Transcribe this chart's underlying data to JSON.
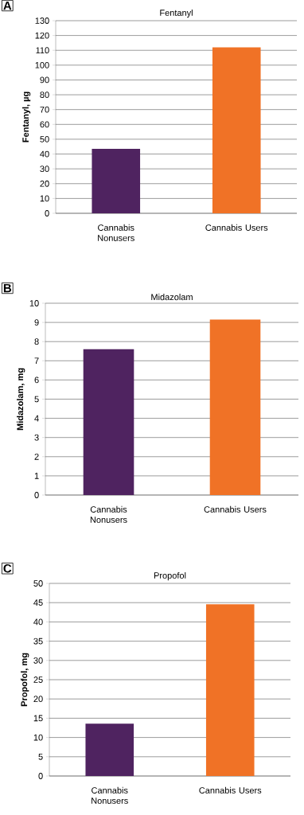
{
  "chart_data": [
    {
      "type": "bar",
      "title": "Fentanyl",
      "ylabel": "Fentanyl, µg",
      "annotations": [
        "A"
      ],
      "categories": [
        "Cannabis Nonusers",
        "Cannabis Users"
      ],
      "values": [
        43.5,
        112
      ],
      "colors": [
        "#4f2360",
        "#f07226"
      ],
      "ylim": [
        0,
        130
      ],
      "yticks": [
        0,
        10,
        20,
        30,
        40,
        50,
        60,
        70,
        80,
        90,
        100,
        110,
        120,
        130
      ],
      "grid": "y"
    },
    {
      "type": "bar",
      "title": "Midazolam",
      "ylabel": "Midazolam, mg",
      "annotations": [
        "B"
      ],
      "categories": [
        "Cannabis Nonusers",
        "Cannabis Users"
      ],
      "values": [
        7.6,
        9.15
      ],
      "colors": [
        "#4f2360",
        "#f07226"
      ],
      "ylim": [
        0,
        10
      ],
      "yticks": [
        0,
        1,
        2,
        3,
        4,
        5,
        6,
        7,
        8,
        9,
        10
      ],
      "grid": "y"
    },
    {
      "type": "bar",
      "title": "Propofol",
      "ylabel": "Propofol, mg",
      "annotations": [
        "C"
      ],
      "categories": [
        "Cannabis Nonusers",
        "Cannabis Users"
      ],
      "values": [
        13.6,
        44.6
      ],
      "colors": [
        "#4f2360",
        "#f07226"
      ],
      "ylim": [
        0,
        50
      ],
      "yticks": [
        0,
        5,
        10,
        15,
        20,
        25,
        30,
        35,
        40,
        45,
        50
      ],
      "grid": "y"
    }
  ]
}
